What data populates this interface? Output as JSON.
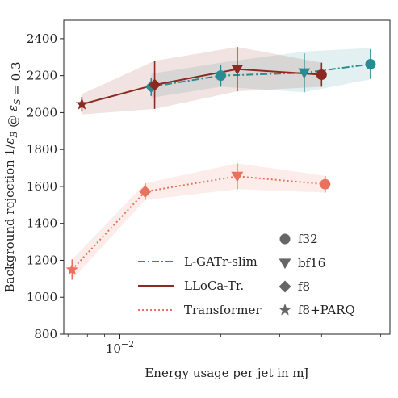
{
  "chart_data": {
    "type": "line",
    "xlabel": "Energy usage per jet in mJ",
    "ylabel": "Background rejection 1/ε_B @ ε_S = 0.3",
    "xscale": "log",
    "xlim": [
      0.0068,
      0.064
    ],
    "ylim": [
      800,
      2500
    ],
    "y_ticks": [
      800,
      1000,
      1200,
      1400,
      1600,
      1800,
      2000,
      2200,
      2400
    ],
    "x_major_tick_label": "10^-2",
    "grid": false,
    "series": [
      {
        "name": "L-GATr-slim",
        "color": "#2a8b92",
        "line_style": "dashdot",
        "markers": [
          "square-diamond",
          "circle",
          "triangle-down",
          "circle"
        ],
        "points": [
          {
            "x": 0.0124,
            "y": 2140,
            "err": 50,
            "marker": "diamond"
          },
          {
            "x": 0.02,
            "y": 2200,
            "err": 60,
            "marker": "circle"
          },
          {
            "x": 0.0355,
            "y": 2215,
            "err": 105,
            "marker": "triangle-down"
          },
          {
            "x": 0.056,
            "y": 2262,
            "err": 80,
            "marker": "circle"
          }
        ],
        "band": [
          {
            "x": 0.0124,
            "lo": 2080,
            "hi": 2210
          },
          {
            "x": 0.02,
            "lo": 2140,
            "hi": 2270
          },
          {
            "x": 0.0355,
            "lo": 2110,
            "hi": 2330
          },
          {
            "x": 0.056,
            "lo": 2180,
            "hi": 2350
          }
        ]
      },
      {
        "name": "LLoCa-Tr.",
        "color": "#8c2a22",
        "line_style": "solid",
        "points": [
          {
            "x": 0.0077,
            "y": 2045,
            "err": 40,
            "marker": "star"
          },
          {
            "x": 0.0127,
            "y": 2150,
            "err": 130,
            "marker": "diamond"
          },
          {
            "x": 0.0224,
            "y": 2235,
            "err": 120,
            "marker": "triangle-down"
          },
          {
            "x": 0.04,
            "y": 2205,
            "err": 65,
            "marker": "circle"
          }
        ],
        "band": [
          {
            "x": 0.0077,
            "lo": 1990,
            "hi": 2100
          },
          {
            "x": 0.0127,
            "lo": 2020,
            "hi": 2280
          },
          {
            "x": 0.0224,
            "lo": 2115,
            "hi": 2355
          },
          {
            "x": 0.04,
            "lo": 2140,
            "hi": 2270
          }
        ]
      },
      {
        "name": "Transformer",
        "color": "#e8715f",
        "line_style": "dotted",
        "points": [
          {
            "x": 0.0072,
            "y": 1150,
            "err": 55,
            "marker": "star"
          },
          {
            "x": 0.0119,
            "y": 1572,
            "err": 45,
            "marker": "diamond"
          },
          {
            "x": 0.0224,
            "y": 1655,
            "err": 70,
            "marker": "triangle-down"
          },
          {
            "x": 0.041,
            "y": 1612,
            "err": 45,
            "marker": "circle"
          }
        ],
        "band": [
          {
            "x": 0.0072,
            "lo": 1095,
            "hi": 1205
          },
          {
            "x": 0.0119,
            "lo": 1527,
            "hi": 1617
          },
          {
            "x": 0.0224,
            "lo": 1585,
            "hi": 1725
          },
          {
            "x": 0.041,
            "lo": 1567,
            "hi": 1657
          }
        ]
      }
    ],
    "legend": {
      "placement": "bottom-right",
      "lines": [
        {
          "label": "L-GATr-slim",
          "color": "#2a8b92",
          "style": "dashdot"
        },
        {
          "label": "LLoCa-Tr.",
          "color": "#8c2a22",
          "style": "solid"
        },
        {
          "label": "Transformer",
          "color": "#e8715f",
          "style": "dotted"
        }
      ],
      "markers": [
        {
          "label": "f32",
          "shape": "circle"
        },
        {
          "label": "bf16",
          "shape": "triangle-down"
        },
        {
          "label": "f8",
          "shape": "diamond"
        },
        {
          "label": "f8+PARQ",
          "shape": "star"
        }
      ],
      "marker_color": "#666666"
    }
  }
}
